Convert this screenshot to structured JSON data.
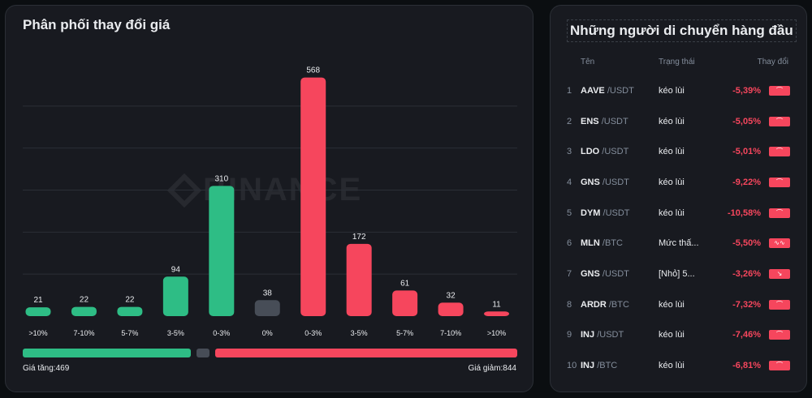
{
  "chart_panel": {
    "title": "Phân phối thay đổi giá",
    "watermark": "BINANCE",
    "footer_rise": "Giá tăng:469",
    "footer_fall": "Giá giảm:844"
  },
  "chart_data": {
    "type": "bar",
    "title": "Phân phối thay đổi giá",
    "categories": [
      ">10%",
      "7-10%",
      "5-7%",
      "3-5%",
      "0-3%",
      "0%",
      "0-3%",
      "3-5%",
      "5-7%",
      "7-10%",
      ">10%"
    ],
    "values": [
      21,
      22,
      22,
      94,
      310,
      38,
      568,
      172,
      61,
      32,
      11
    ],
    "groups": [
      "rise",
      "rise",
      "rise",
      "rise",
      "rise",
      "flat",
      "fall",
      "fall",
      "fall",
      "fall",
      "fall"
    ],
    "colors": {
      "rise": "#2ebd85",
      "flat": "#474d57",
      "fall": "#f6465d"
    },
    "ylim": [
      0,
      600
    ],
    "grid": true,
    "totals": {
      "rise": 469,
      "flat": 38,
      "fall": 844
    }
  },
  "movers": {
    "title": "Những người di chuyển hàng đầu",
    "headers": {
      "name": "Tên",
      "status": "Trạng thái",
      "change": "Thay đổi"
    },
    "rows": [
      {
        "rank": "1",
        "symbol": "AAVE",
        "quote": "/USDT",
        "status": "kéo lùi",
        "change": "-5,39%",
        "icon": "pullback-icon"
      },
      {
        "rank": "2",
        "symbol": "ENS",
        "quote": "/USDT",
        "status": "kéo lùi",
        "change": "-5,05%",
        "icon": "pullback-icon"
      },
      {
        "rank": "3",
        "symbol": "LDO",
        "quote": "/USDT",
        "status": "kéo lùi",
        "change": "-5,01%",
        "icon": "pullback-icon"
      },
      {
        "rank": "4",
        "symbol": "GNS",
        "quote": "/USDT",
        "status": "kéo lùi",
        "change": "-9,22%",
        "icon": "pullback-icon"
      },
      {
        "rank": "5",
        "symbol": "DYM",
        "quote": "/USDT",
        "status": "kéo lùi",
        "change": "-10,58%",
        "icon": "pullback-icon"
      },
      {
        "rank": "6",
        "symbol": "MLN",
        "quote": "/BTC",
        "status": "Mức thấ...",
        "change": "-5,50%",
        "icon": "wave-icon"
      },
      {
        "rank": "7",
        "symbol": "GNS",
        "quote": "/USDT",
        "status": "[Nhỏ] 5...",
        "change": "-3,26%",
        "icon": "arrow-down-right-icon"
      },
      {
        "rank": "8",
        "symbol": "ARDR",
        "quote": "/BTC",
        "status": "kéo lùi",
        "change": "-7,32%",
        "icon": "pullback-icon"
      },
      {
        "rank": "9",
        "symbol": "INJ",
        "quote": "/USDT",
        "status": "kéo lùi",
        "change": "-7,46%",
        "icon": "pullback-icon"
      },
      {
        "rank": "10",
        "symbol": "INJ",
        "quote": "/BTC",
        "status": "kéo lùi",
        "change": "-6,81%",
        "icon": "pullback-icon"
      }
    ]
  }
}
